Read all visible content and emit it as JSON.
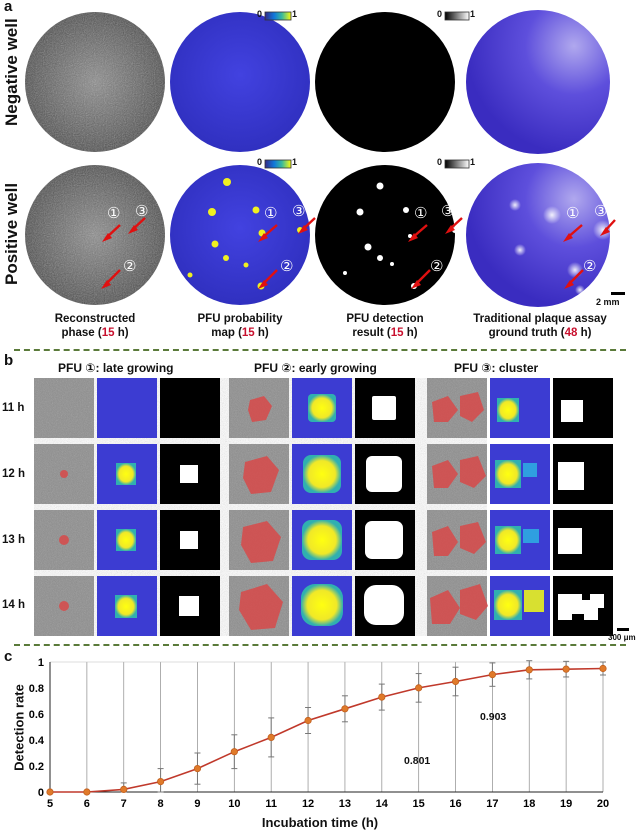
{
  "panel_a": {
    "letter": "a",
    "row_labels": [
      "Negative well",
      "Positive well"
    ],
    "colorbar_prob": {
      "min": "0",
      "max": "1"
    },
    "colorbar_det": {
      "min": "0",
      "max": "1"
    },
    "markers": [
      "①",
      "②",
      "③"
    ],
    "captions": [
      {
        "line1": "Reconstructed",
        "pre": "phase (",
        "num": "15",
        "post": " h)"
      },
      {
        "line1": "PFU probability",
        "pre": "map (",
        "num": "15",
        "post": " h)"
      },
      {
        "line1": "PFU detection",
        "pre": "result (",
        "num": "15",
        "post": " h)"
      },
      {
        "line1": "Traditional plaque assay",
        "pre": "ground truth (",
        "num": "48",
        "post": " h)"
      }
    ],
    "scale_label": "2 mm",
    "colors": {
      "prob_bg": "#3a3ad8",
      "assay_bg": "#5a48d8",
      "phase_bg": "#7a7a7a",
      "arrow": "#e01010",
      "highlight": "#c8102e"
    }
  },
  "panel_b": {
    "letter": "b",
    "titles": [
      "PFU ①: late growing",
      "PFU ②: early growing",
      "PFU ③: cluster"
    ],
    "time_labels": [
      "11 h",
      "12 h",
      "13 h",
      "14 h"
    ],
    "scale_label": "300 μm"
  },
  "panel_c": {
    "letter": "c",
    "annotations": [
      "0.801",
      "0.903"
    ]
  },
  "chart_data": {
    "type": "line",
    "title": "",
    "xlabel": "Incubation time (h)",
    "ylabel": "Detection rate",
    "xlim": [
      5,
      20
    ],
    "ylim": [
      0,
      1
    ],
    "x": [
      5,
      6,
      7,
      8,
      9,
      10,
      11,
      12,
      13,
      14,
      15,
      16,
      17,
      18,
      19,
      20
    ],
    "xticks": [
      "5",
      "6",
      "7",
      "8",
      "9",
      "10",
      "11",
      "12",
      "13",
      "14",
      "15",
      "16",
      "17",
      "18",
      "19",
      "20"
    ],
    "yticks": [
      "0",
      "0.2",
      "0.4",
      "0.6",
      "0.8",
      "1"
    ],
    "series": [
      {
        "values": [
          0,
          0,
          0.02,
          0.08,
          0.18,
          0.31,
          0.42,
          0.55,
          0.64,
          0.73,
          0.801,
          0.85,
          0.903,
          0.94,
          0.945,
          0.95
        ],
        "errors": [
          0,
          0,
          0.05,
          0.1,
          0.12,
          0.13,
          0.15,
          0.1,
          0.1,
          0.1,
          0.11,
          0.11,
          0.09,
          0.07,
          0.06,
          0.05
        ],
        "color": "#e07a2a"
      }
    ],
    "annotations": [
      {
        "x": 15,
        "text": "0.801"
      },
      {
        "x": 17,
        "text": "0.903"
      }
    ],
    "grid": "vertical"
  }
}
